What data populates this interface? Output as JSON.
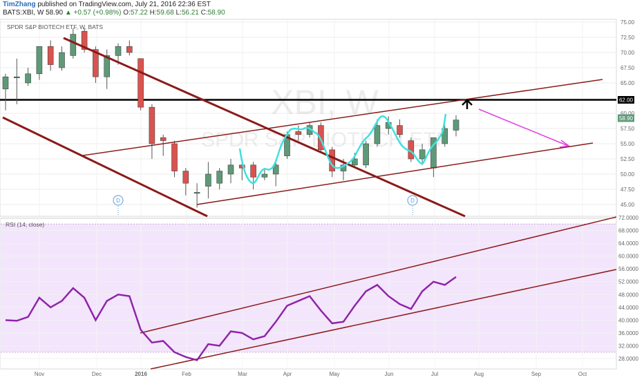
{
  "header": {
    "author": "TimZhang",
    "published_text": "published on TradingView.com, July 21, 2016 22:36 EST",
    "symbol": "BATS:XBI, W",
    "last": "58.90",
    "change": "▲ +0.57 (+0.98%)",
    "o_label": "O:",
    "o_value": "57.22",
    "h_label": "H:",
    "h_value": "59.68",
    "l_label": "L:",
    "l_value": "56.21",
    "c_label": "C:",
    "c_value": "58.90"
  },
  "price_pane": {
    "title": "SPDR S&P BIOTECH ETF, W, BATS",
    "watermark_symbol": "XBI, W",
    "watermark_name": "SPDR S&P BIOTECH ETF",
    "dividend_marker": "D",
    "y_ticks": [
      "75.00",
      "72.50",
      "70.00",
      "67.50",
      "65.00",
      "62.50",
      "60.00",
      "57.50",
      "55.00",
      "52.50",
      "50.00",
      "47.50",
      "45.00"
    ],
    "horizontal_level_label": "62.00",
    "last_price_label": "58.90"
  },
  "rsi_pane": {
    "title": "RSI (14, close)",
    "y_ticks": [
      "72.0000",
      "68.0000",
      "64.0000",
      "60.0000",
      "56.0000",
      "52.0000",
      "48.0000",
      "44.0000",
      "40.0000",
      "36.0000",
      "32.0000",
      "28.0000"
    ]
  },
  "x_axis": {
    "labels": [
      "Nov",
      "Dec",
      "2016",
      "Feb",
      "Mar",
      "Apr",
      "May",
      "Jun",
      "Jul",
      "Aug",
      "Sep",
      "Oct"
    ]
  },
  "colors": {
    "up_candle": "#5e9a78",
    "down_candle": "#d9534f",
    "channel": "#8b1a1a",
    "level": "#000000",
    "swing_path": "#40e0e0",
    "forecast_arrow": "#e040e0",
    "rsi_line": "#8e24aa",
    "rsi_band": "#f3e5fb"
  },
  "chart_data": [
    {
      "type": "candlestick",
      "title": "SPDR S&P BIOTECH ETF, W, BATS",
      "ylim": [
        43.5,
        76
      ],
      "candles": [
        {
          "date": "2015-10-16",
          "open": 64.0,
          "high": 66.5,
          "low": 60.5,
          "close": 66.0
        },
        {
          "date": "2015-10-23",
          "open": 66.0,
          "high": 69.0,
          "low": 61.5,
          "close": 66.0
        },
        {
          "date": "2015-10-30",
          "open": 65.0,
          "high": 67.5,
          "low": 64.5,
          "close": 66.5
        },
        {
          "date": "2015-11-06",
          "open": 66.5,
          "high": 71.0,
          "low": 65.5,
          "close": 71.0
        },
        {
          "date": "2015-11-13",
          "open": 71.0,
          "high": 72.0,
          "low": 67.0,
          "close": 68.0
        },
        {
          "date": "2015-11-20",
          "open": 67.5,
          "high": 71.0,
          "low": 67.0,
          "close": 70.0
        },
        {
          "date": "2015-11-27",
          "open": 69.5,
          "high": 74.0,
          "low": 69.0,
          "close": 73.0
        },
        {
          "date": "2015-12-04",
          "open": 73.5,
          "high": 74.0,
          "low": 70.0,
          "close": 70.5
        },
        {
          "date": "2015-12-11",
          "open": 70.5,
          "high": 71.0,
          "low": 65.0,
          "close": 66.0
        },
        {
          "date": "2015-12-18",
          "open": 66.0,
          "high": 70.5,
          "low": 64.0,
          "close": 69.5
        },
        {
          "date": "2015-12-25",
          "open": 69.5,
          "high": 71.5,
          "low": 68.0,
          "close": 71.0
        },
        {
          "date": "2016-01-01",
          "open": 71.0,
          "high": 72.0,
          "low": 69.5,
          "close": 70.0
        },
        {
          "date": "2016-01-08",
          "open": 69.0,
          "high": 69.0,
          "low": 60.5,
          "close": 61.0
        },
        {
          "date": "2016-01-15",
          "open": 61.0,
          "high": 61.5,
          "low": 52.5,
          "close": 55.0
        },
        {
          "date": "2016-01-22",
          "open": 56.0,
          "high": 56.5,
          "low": 53.0,
          "close": 55.5
        },
        {
          "date": "2016-01-29",
          "open": 55.0,
          "high": 55.5,
          "low": 49.5,
          "close": 50.5
        },
        {
          "date": "2016-02-05",
          "open": 50.5,
          "high": 51.0,
          "low": 46.5,
          "close": 48.5
        },
        {
          "date": "2016-02-12",
          "open": 47.0,
          "high": 48.5,
          "low": 44.5,
          "close": 47.0
        },
        {
          "date": "2016-02-19",
          "open": 48.0,
          "high": 52.0,
          "low": 46.0,
          "close": 50.0
        },
        {
          "date": "2016-02-26",
          "open": 48.5,
          "high": 51.0,
          "low": 47.5,
          "close": 50.5
        },
        {
          "date": "2016-03-04",
          "open": 50.0,
          "high": 52.5,
          "low": 48.5,
          "close": 51.5
        },
        {
          "date": "2016-03-11",
          "open": 51.5,
          "high": 52.5,
          "low": 49.0,
          "close": 51.0
        },
        {
          "date": "2016-03-18",
          "open": 51.5,
          "high": 52.0,
          "low": 47.5,
          "close": 49.5
        },
        {
          "date": "2016-03-25",
          "open": 49.5,
          "high": 51.0,
          "low": 49.0,
          "close": 50.0
        },
        {
          "date": "2016-04-01",
          "open": 50.0,
          "high": 52.0,
          "low": 48.0,
          "close": 51.5
        },
        {
          "date": "2016-04-08",
          "open": 53.0,
          "high": 57.0,
          "low": 52.5,
          "close": 56.5
        },
        {
          "date": "2016-04-15",
          "open": 57.0,
          "high": 58.0,
          "low": 55.5,
          "close": 56.5
        },
        {
          "date": "2016-04-22",
          "open": 56.5,
          "high": 58.5,
          "low": 56.0,
          "close": 58.0
        },
        {
          "date": "2016-04-29",
          "open": 58.0,
          "high": 58.5,
          "low": 53.5,
          "close": 54.0
        },
        {
          "date": "2016-05-06",
          "open": 54.0,
          "high": 54.5,
          "low": 49.5,
          "close": 50.5
        },
        {
          "date": "2016-05-13",
          "open": 50.5,
          "high": 52.5,
          "low": 49.0,
          "close": 51.5
        },
        {
          "date": "2016-05-20",
          "open": 51.5,
          "high": 53.5,
          "low": 51.0,
          "close": 52.5
        },
        {
          "date": "2016-05-27",
          "open": 51.5,
          "high": 55.5,
          "low": 51.0,
          "close": 55.0
        },
        {
          "date": "2016-06-03",
          "open": 55.0,
          "high": 59.0,
          "low": 54.5,
          "close": 58.0
        },
        {
          "date": "2016-06-10",
          "open": 57.5,
          "high": 59.5,
          "low": 56.5,
          "close": 58.5
        },
        {
          "date": "2016-06-17",
          "open": 58.0,
          "high": 59.0,
          "low": 56.0,
          "close": 56.5
        },
        {
          "date": "2016-06-24",
          "open": 55.5,
          "high": 56.0,
          "low": 52.0,
          "close": 52.5
        },
        {
          "date": "2016-07-01",
          "open": 52.5,
          "high": 55.0,
          "low": 51.5,
          "close": 54.0
        },
        {
          "date": "2016-07-08",
          "open": 51.0,
          "high": 56.0,
          "low": 49.5,
          "close": 56.0
        },
        {
          "date": "2016-07-15",
          "open": 55.0,
          "high": 58.0,
          "low": 54.5,
          "close": 57.5
        },
        {
          "date": "2016-07-22",
          "open": 57.22,
          "high": 59.68,
          "low": 56.21,
          "close": 58.9
        }
      ]
    },
    {
      "type": "line",
      "title": "RSI (14, close)",
      "ylim": [
        26,
        72
      ],
      "band": [
        30,
        70
      ],
      "series": [
        {
          "values": [
            40.0,
            39.8,
            41.0,
            47.0,
            44.0,
            46.0,
            50.0,
            47.0,
            40.0,
            46.0,
            48.0,
            47.5,
            37.0,
            33.0,
            33.5,
            30.0,
            28.5,
            27.5,
            32.5,
            32.0,
            36.5,
            36.0,
            34.0,
            35.0,
            39.5,
            44.5,
            46.0,
            47.5,
            43.0,
            39.0,
            39.5,
            44.5,
            49.0,
            51.0,
            47.5,
            45.0,
            43.5,
            49.0,
            52.0,
            51.0,
            53.5
          ]
        }
      ]
    }
  ]
}
